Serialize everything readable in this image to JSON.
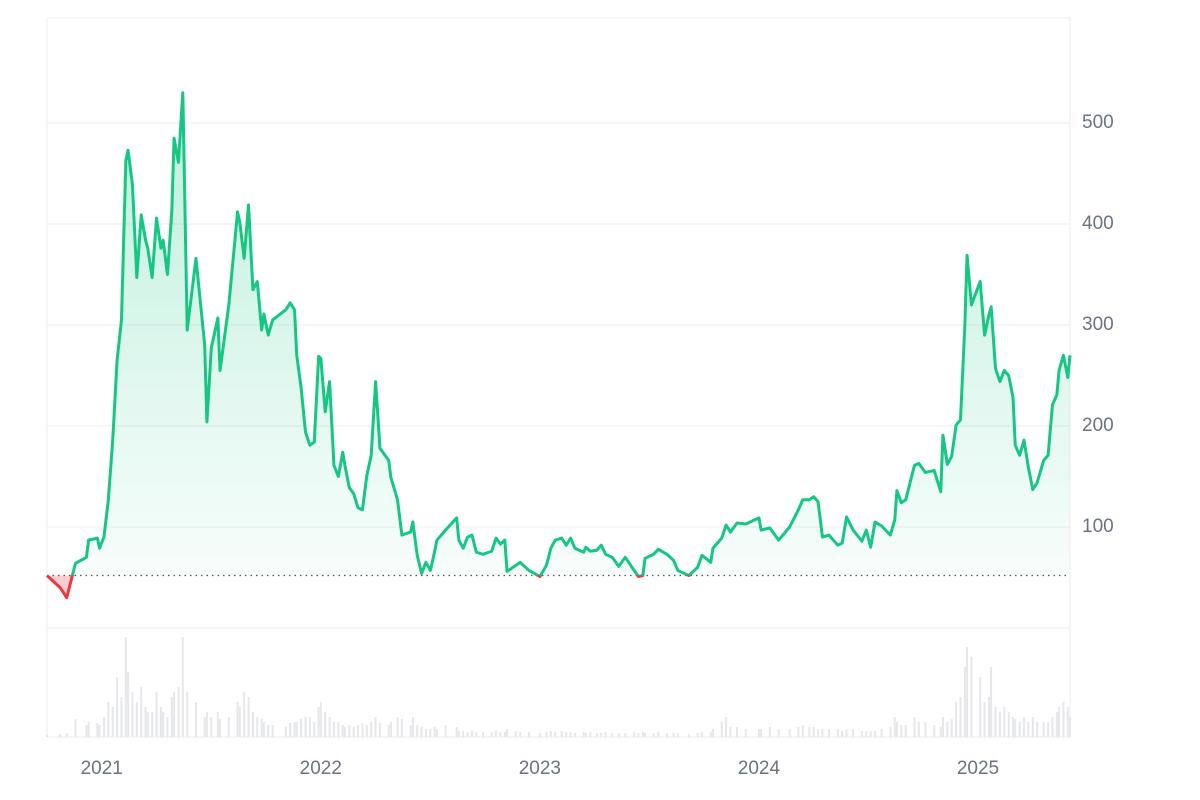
{
  "chart_data": {
    "type": "line",
    "x": [
      2020.75,
      2020.81,
      2020.84,
      2020.88,
      2020.93,
      2020.94,
      2020.98,
      2020.99,
      2021.01,
      2021.03,
      2021.05,
      2021.07,
      2021.09,
      2021.11,
      2021.12,
      2021.14,
      2021.16,
      2021.18,
      2021.2,
      2021.21,
      2021.23,
      2021.25,
      2021.27,
      2021.28,
      2021.3,
      2021.32,
      2021.33,
      2021.35,
      2021.37,
      2021.39,
      2021.43,
      2021.47,
      2021.48,
      2021.5,
      2021.53,
      2021.54,
      2021.58,
      2021.62,
      2021.63,
      2021.65,
      2021.67,
      2021.69,
      2021.71,
      2021.73,
      2021.74,
      2021.76,
      2021.78,
      2021.84,
      2021.86,
      2021.88,
      2021.89,
      2021.91,
      2021.93,
      2021.95,
      2021.97,
      2021.99,
      2022.0,
      2022.02,
      2022.04,
      2022.06,
      2022.08,
      2022.1,
      2022.11,
      2022.13,
      2022.15,
      2022.17,
      2022.19,
      2022.21,
      2022.23,
      2022.25,
      2022.27,
      2022.31,
      2022.32,
      2022.35,
      2022.37,
      2022.41,
      2022.42,
      2022.44,
      2022.46,
      2022.48,
      2022.5,
      2022.52,
      2022.53,
      2022.57,
      2022.62,
      2022.63,
      2022.65,
      2022.67,
      2022.69,
      2022.71,
      2022.74,
      2022.78,
      2022.8,
      2022.82,
      2022.84,
      2022.85,
      2022.89,
      2022.91,
      2022.95,
      2023.0,
      2023.03,
      2023.05,
      2023.07,
      2023.1,
      2023.12,
      2023.14,
      2023.16,
      2023.2,
      2023.21,
      2023.23,
      2023.26,
      2023.28,
      2023.3,
      2023.33,
      2023.36,
      2023.39,
      2023.43,
      2023.45,
      2023.47,
      2023.48,
      2023.52,
      2023.54,
      2023.58,
      2023.61,
      2023.63,
      2023.68,
      2023.72,
      2023.74,
      2023.78,
      2023.79,
      2023.83,
      2023.85,
      2023.87,
      2023.9,
      2023.94,
      2024.0,
      2024.01,
      2024.05,
      2024.09,
      2024.14,
      2024.18,
      2024.2,
      2024.23,
      2024.25,
      2024.27,
      2024.29,
      2024.32,
      2024.36,
      2024.38,
      2024.4,
      2024.43,
      2024.47,
      2024.49,
      2024.51,
      2024.53,
      2024.56,
      2024.6,
      2024.62,
      2024.63,
      2024.65,
      2024.67,
      2024.71,
      2024.73,
      2024.76,
      2024.8,
      2024.83,
      2024.84,
      2024.86,
      2024.88,
      2024.9,
      2024.92,
      2024.94,
      2024.95,
      2024.97,
      2025.01,
      2025.03,
      2025.05,
      2025.06,
      2025.08,
      2025.1,
      2025.12,
      2025.14,
      2025.16,
      2025.17,
      2025.19,
      2025.21,
      2025.23,
      2025.25,
      2025.27,
      2025.3,
      2025.32,
      2025.34,
      2025.36,
      2025.37,
      2025.39,
      2025.41,
      2025.42
    ],
    "values": [
      52,
      40,
      30,
      64,
      70,
      87,
      89,
      79,
      90,
      127,
      186,
      265,
      305,
      463,
      473,
      439,
      347,
      409,
      384,
      376,
      347,
      406,
      376,
      384,
      350,
      414,
      485,
      461,
      530,
      295,
      366,
      280,
      204,
      277,
      307,
      255,
      320,
      412,
      402,
      366,
      419,
      335,
      343,
      295,
      311,
      290,
      305,
      315,
      322,
      315,
      270,
      238,
      194,
      181,
      184,
      269,
      267,
      214,
      244,
      161,
      150,
      174,
      161,
      139,
      133,
      119,
      117,
      151,
      171,
      244,
      178,
      166,
      149,
      127,
      92,
      95,
      105,
      72,
      54,
      65,
      57,
      76,
      87,
      97,
      109,
      87,
      79,
      90,
      92,
      75,
      73,
      76,
      89,
      83,
      87,
      56,
      62,
      65,
      57,
      51,
      62,
      79,
      87,
      89,
      82,
      89,
      79,
      75,
      80,
      76,
      77,
      82,
      73,
      70,
      61,
      70,
      57,
      51,
      52,
      69,
      73,
      78,
      73,
      67,
      57,
      52,
      60,
      72,
      65,
      79,
      89,
      102,
      95,
      104,
      103,
      109,
      97,
      99,
      87,
      100,
      117,
      127,
      127,
      130,
      125,
      90,
      92,
      82,
      84,
      110,
      97,
      86,
      97,
      80,
      105,
      101,
      92,
      107,
      136,
      124,
      127,
      161,
      163,
      154,
      156,
      135,
      191,
      162,
      170,
      201,
      206,
      300,
      369,
      320,
      343,
      290,
      310,
      318,
      257,
      244,
      255,
      250,
      228,
      181,
      171,
      186,
      159,
      137,
      144,
      166,
      171,
      221,
      231,
      255,
      270,
      248,
      270
    ],
    "volume": [
      2,
      3,
      4,
      18,
      12,
      15,
      14,
      12,
      20,
      35,
      30,
      60,
      40,
      100,
      65,
      45,
      35,
      50,
      30,
      25,
      25,
      45,
      30,
      25,
      20,
      40,
      45,
      50,
      100,
      45,
      35,
      20,
      25,
      20,
      25,
      18,
      20,
      35,
      30,
      45,
      40,
      25,
      20,
      18,
      15,
      12,
      12,
      10,
      14,
      15,
      15,
      18,
      20,
      20,
      15,
      30,
      35,
      25,
      20,
      15,
      15,
      12,
      10,
      12,
      10,
      12,
      14,
      12,
      15,
      20,
      14,
      12,
      15,
      20,
      18,
      12,
      20,
      12,
      10,
      8,
      8,
      10,
      8,
      12,
      10,
      6,
      6,
      5,
      6,
      5,
      5,
      5,
      6,
      5,
      5,
      8,
      6,
      5,
      5,
      4,
      5,
      6,
      5,
      6,
      5,
      5,
      4,
      5,
      4,
      5,
      4,
      4,
      5,
      4,
      4,
      4,
      5,
      4,
      5,
      4,
      4,
      5,
      4,
      4,
      4,
      3,
      4,
      5,
      5,
      8,
      15,
      20,
      10,
      10,
      8,
      8,
      8,
      10,
      8,
      8,
      10,
      12,
      10,
      10,
      8,
      8,
      8,
      8,
      6,
      8,
      8,
      6,
      6,
      6,
      6,
      8,
      10,
      20,
      15,
      12,
      12,
      20,
      15,
      15,
      12,
      10,
      20,
      15,
      18,
      35,
      40,
      70,
      90,
      80,
      60,
      35,
      40,
      70,
      30,
      25,
      30,
      25,
      20,
      18,
      15,
      20,
      15,
      20,
      15,
      15,
      15,
      20,
      25,
      30,
      35,
      30,
      20
    ],
    "baseline": 52,
    "up_color": "#16c784",
    "down_color": "#ea3943",
    "volume_color": "#e5e7eb",
    "xlim": [
      2020.75,
      2025.42
    ],
    "xticks": [
      2021,
      2022,
      2023,
      2024,
      2025
    ],
    "ylim": [
      0,
      604
    ],
    "yticks": [
      100,
      200,
      300,
      400,
      500
    ],
    "volume_lim": [
      0,
      100
    ],
    "grid": true,
    "y_axis_side": "right"
  }
}
